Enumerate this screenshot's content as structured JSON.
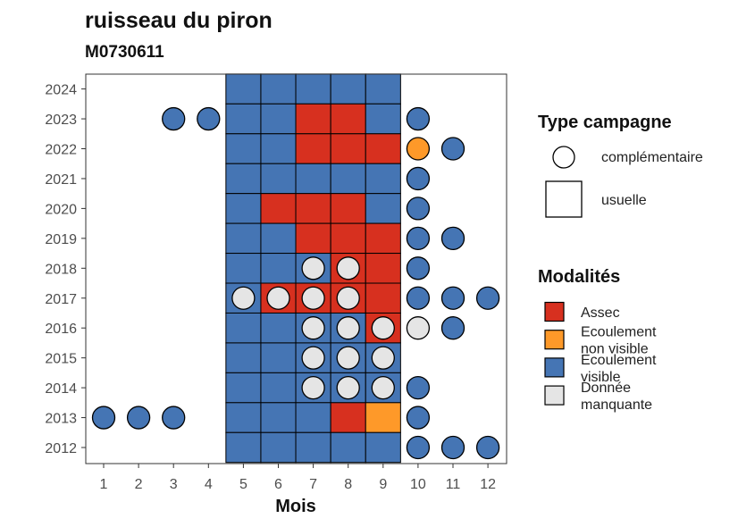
{
  "chart_data": {
    "type": "heatmap",
    "title": "ruisseau du piron",
    "subtitle": "M0730611",
    "xlabel": "Mois",
    "ylabel": "",
    "x_ticks": [
      "1",
      "2",
      "3",
      "4",
      "5",
      "6",
      "7",
      "8",
      "9",
      "10",
      "11",
      "12"
    ],
    "y_ticks": [
      "2012",
      "2013",
      "2014",
      "2015",
      "2016",
      "2017",
      "2018",
      "2019",
      "2020",
      "2021",
      "2022",
      "2023",
      "2024"
    ],
    "colors": {
      "Assec": "#d7301f",
      "Ecoulement non visible": "#fe9929",
      "Ecoulement visible": "#4575b4",
      "Donnée manquante": "#e5e5e5"
    },
    "legend_shape": {
      "title": "Type campagne",
      "items": [
        {
          "key": "complementaire",
          "label": "complémentaire",
          "shape": "circle"
        },
        {
          "key": "usuelle",
          "label": "usuelle",
          "shape": "square"
        }
      ]
    },
    "legend_modalites": {
      "title": "Modalités",
      "items": [
        {
          "key": "Assec",
          "lines": [
            "Assec"
          ]
        },
        {
          "key": "Ecoulement non visible",
          "lines": [
            "Ecoulement",
            "non visible"
          ]
        },
        {
          "key": "Ecoulement visible",
          "lines": [
            "Ecoulement",
            "visible"
          ]
        },
        {
          "key": "Donnée manquante",
          "lines": [
            "Donnée",
            "manquante"
          ]
        }
      ]
    },
    "usuelle": [
      {
        "year": 2024,
        "months": [
          "Ecoulement visible",
          "Ecoulement visible",
          "Ecoulement visible",
          "Ecoulement visible",
          "Ecoulement visible"
        ]
      },
      {
        "year": 2023,
        "months": [
          "Ecoulement visible",
          "Ecoulement visible",
          "Assec",
          "Assec",
          "Ecoulement visible"
        ]
      },
      {
        "year": 2022,
        "months": [
          "Ecoulement visible",
          "Ecoulement visible",
          "Assec",
          "Assec",
          "Assec"
        ]
      },
      {
        "year": 2021,
        "months": [
          "Ecoulement visible",
          "Ecoulement visible",
          "Ecoulement visible",
          "Ecoulement visible",
          "Ecoulement visible"
        ]
      },
      {
        "year": 2020,
        "months": [
          "Ecoulement visible",
          "Assec",
          "Assec",
          "Assec",
          "Ecoulement visible"
        ]
      },
      {
        "year": 2019,
        "months": [
          "Ecoulement visible",
          "Ecoulement visible",
          "Assec",
          "Assec",
          "Assec"
        ]
      },
      {
        "year": 2018,
        "months": [
          "Ecoulement visible",
          "Ecoulement visible",
          "Ecoulement visible",
          "Assec",
          "Assec"
        ]
      },
      {
        "year": 2017,
        "months": [
          "Ecoulement visible",
          "Assec",
          "Assec",
          "Assec",
          "Assec"
        ]
      },
      {
        "year": 2016,
        "months": [
          "Ecoulement visible",
          "Ecoulement visible",
          "Ecoulement visible",
          "Ecoulement visible",
          "Assec"
        ]
      },
      {
        "year": 2015,
        "months": [
          "Ecoulement visible",
          "Ecoulement visible",
          "Ecoulement visible",
          "Ecoulement visible",
          "Ecoulement visible"
        ]
      },
      {
        "year": 2014,
        "months": [
          "Ecoulement visible",
          "Ecoulement visible",
          "Ecoulement visible",
          "Ecoulement visible",
          "Ecoulement visible"
        ]
      },
      {
        "year": 2013,
        "months": [
          "Ecoulement visible",
          "Ecoulement visible",
          "Ecoulement visible",
          "Assec",
          "Ecoulement non visible"
        ]
      },
      {
        "year": 2012,
        "months": [
          "Ecoulement visible",
          "Ecoulement visible",
          "Ecoulement visible",
          "Ecoulement visible",
          "Ecoulement visible"
        ]
      }
    ],
    "usuelle_months": [
      5,
      6,
      7,
      8,
      9
    ],
    "complementaire": [
      {
        "year": 2023,
        "month": 3,
        "value": "Ecoulement visible"
      },
      {
        "year": 2023,
        "month": 4,
        "value": "Ecoulement visible"
      },
      {
        "year": 2023,
        "month": 10,
        "value": "Ecoulement visible"
      },
      {
        "year": 2022,
        "month": 10,
        "value": "Ecoulement non visible"
      },
      {
        "year": 2022,
        "month": 11,
        "value": "Ecoulement visible"
      },
      {
        "year": 2021,
        "month": 10,
        "value": "Ecoulement visible"
      },
      {
        "year": 2020,
        "month": 10,
        "value": "Ecoulement visible"
      },
      {
        "year": 2019,
        "month": 10,
        "value": "Ecoulement visible"
      },
      {
        "year": 2019,
        "month": 11,
        "value": "Ecoulement visible"
      },
      {
        "year": 2018,
        "month": 7,
        "value": "Donnée manquante"
      },
      {
        "year": 2018,
        "month": 8,
        "value": "Donnée manquante"
      },
      {
        "year": 2018,
        "month": 10,
        "value": "Ecoulement visible"
      },
      {
        "year": 2017,
        "month": 5,
        "value": "Donnée manquante"
      },
      {
        "year": 2017,
        "month": 6,
        "value": "Donnée manquante"
      },
      {
        "year": 2017,
        "month": 7,
        "value": "Donnée manquante"
      },
      {
        "year": 2017,
        "month": 8,
        "value": "Donnée manquante"
      },
      {
        "year": 2017,
        "month": 10,
        "value": "Ecoulement visible"
      },
      {
        "year": 2017,
        "month": 11,
        "value": "Ecoulement visible"
      },
      {
        "year": 2017,
        "month": 12,
        "value": "Ecoulement visible"
      },
      {
        "year": 2016,
        "month": 7,
        "value": "Donnée manquante"
      },
      {
        "year": 2016,
        "month": 8,
        "value": "Donnée manquante"
      },
      {
        "year": 2016,
        "month": 9,
        "value": "Donnée manquante"
      },
      {
        "year": 2016,
        "month": 10,
        "value": "Donnée manquante"
      },
      {
        "year": 2016,
        "month": 11,
        "value": "Ecoulement visible"
      },
      {
        "year": 2015,
        "month": 7,
        "value": "Donnée manquante"
      },
      {
        "year": 2015,
        "month": 8,
        "value": "Donnée manquante"
      },
      {
        "year": 2015,
        "month": 9,
        "value": "Donnée manquante"
      },
      {
        "year": 2014,
        "month": 7,
        "value": "Donnée manquante"
      },
      {
        "year": 2014,
        "month": 8,
        "value": "Donnée manquante"
      },
      {
        "year": 2014,
        "month": 9,
        "value": "Donnée manquante"
      },
      {
        "year": 2014,
        "month": 10,
        "value": "Ecoulement visible"
      },
      {
        "year": 2013,
        "month": 1,
        "value": "Ecoulement visible"
      },
      {
        "year": 2013,
        "month": 2,
        "value": "Ecoulement visible"
      },
      {
        "year": 2013,
        "month": 3,
        "value": "Ecoulement visible"
      },
      {
        "year": 2013,
        "month": 10,
        "value": "Ecoulement visible"
      },
      {
        "year": 2012,
        "month": 10,
        "value": "Ecoulement visible"
      },
      {
        "year": 2012,
        "month": 11,
        "value": "Ecoulement visible"
      },
      {
        "year": 2012,
        "month": 12,
        "value": "Ecoulement visible"
      }
    ]
  }
}
